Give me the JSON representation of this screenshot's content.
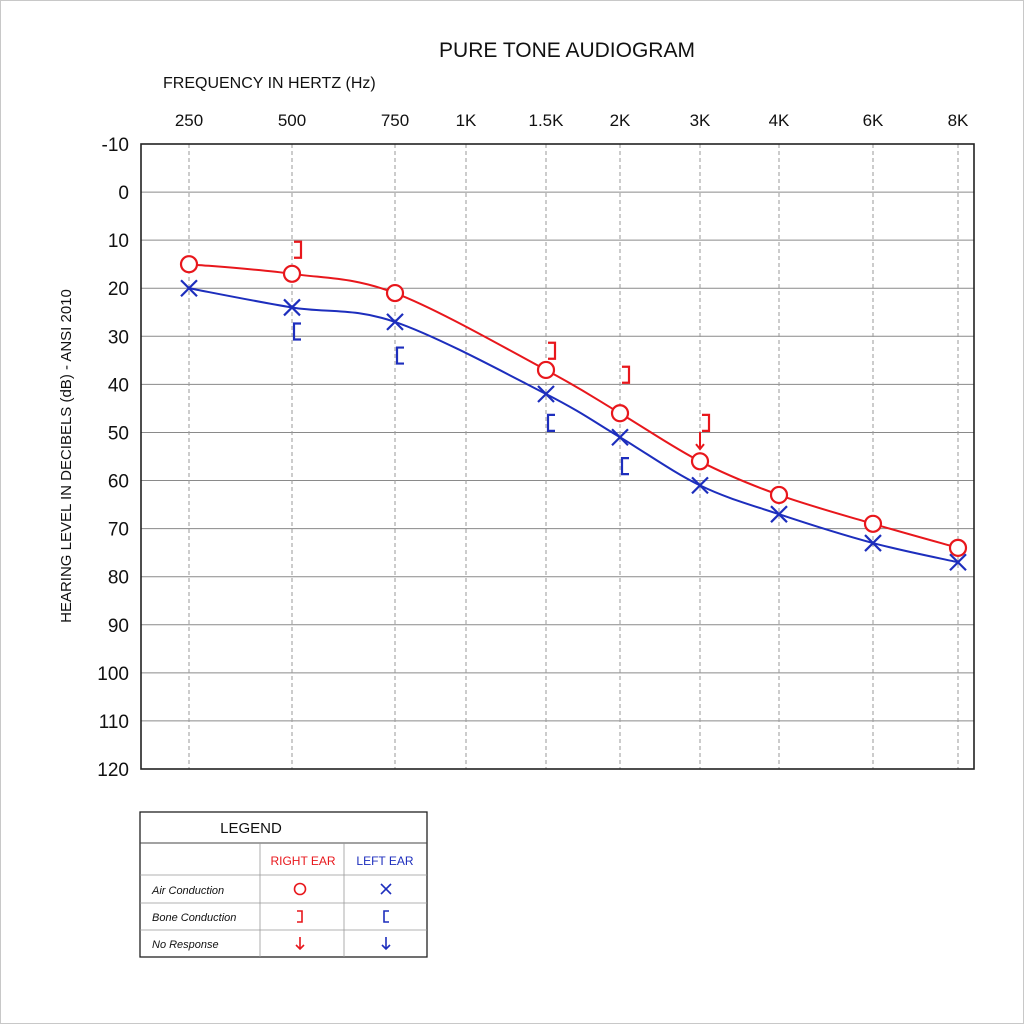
{
  "chart_data": {
    "type": "line",
    "title": "PURE TONE AUDIOGRAM",
    "xlabel": "FREQUENCY IN HERTZ (Hz)",
    "ylabel": "HEARING LEVEL IN DECIBELS (dB) - ANSI 2010",
    "x_ticks": [
      "250",
      "500",
      "750",
      "1K",
      "1.5K",
      "2K",
      "3K",
      "4K",
      "6K",
      "8K"
    ],
    "x_values_hz": [
      250,
      500,
      750,
      1000,
      1500,
      2000,
      3000,
      4000,
      6000,
      8000
    ],
    "y_ticks": [
      "-10",
      "0",
      "10",
      "20",
      "30",
      "40",
      "50",
      "60",
      "70",
      "80",
      "90",
      "100",
      "110",
      "120"
    ],
    "ylim": [
      -10,
      120
    ],
    "y_inverted": true,
    "grid": true,
    "series": [
      {
        "name": "RIGHT EAR",
        "kind": "air",
        "color": "#e8171c",
        "marker": "circle",
        "x": [
          250,
          500,
          750,
          1500,
          2000,
          3000,
          4000,
          6000,
          8000
        ],
        "y": [
          15,
          17,
          21,
          37,
          46,
          56,
          63,
          69,
          74
        ]
      },
      {
        "name": "LEFT EAR",
        "kind": "air",
        "color": "#1d2ebd",
        "marker": "x",
        "x": [
          250,
          500,
          750,
          1500,
          2000,
          3000,
          4000,
          6000,
          8000
        ],
        "y": [
          20,
          24,
          27,
          42,
          51,
          61,
          67,
          73,
          77
        ]
      }
    ],
    "bone_conduction": [
      {
        "name": "RIGHT EAR",
        "color": "#e8171c",
        "symbol": "]",
        "x": [
          500,
          1500,
          2000,
          3000
        ],
        "y": [
          12,
          33,
          38,
          48
        ]
      },
      {
        "name": "LEFT EAR",
        "color": "#1d2ebd",
        "symbol": "[",
        "x": [
          500,
          750,
          1500,
          2000
        ],
        "y": [
          29,
          34,
          48,
          57
        ]
      }
    ],
    "no_response": [
      {
        "name": "RIGHT EAR",
        "color": "#e8171c",
        "x": 3000,
        "y": 52
      }
    ]
  },
  "legend": {
    "title": "LEGEND",
    "right_label": "RIGHT EAR",
    "left_label": "LEFT EAR",
    "rows": [
      {
        "label": "Air Conduction",
        "right": "O",
        "left": "X"
      },
      {
        "label": "Bone Conduction",
        "right": "]",
        "left": "["
      },
      {
        "label": "No Response",
        "right": "↓",
        "left": "↓"
      }
    ]
  }
}
